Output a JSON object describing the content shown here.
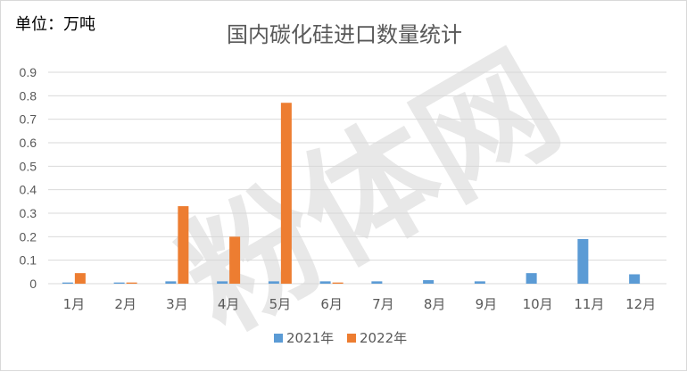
{
  "unit_label": "单位：万吨",
  "watermark": "粉体网",
  "chart_data": {
    "type": "bar",
    "title": "国内碳化硅进口数量统计",
    "xlabel": "",
    "ylabel": "",
    "categories": [
      "1月",
      "2月",
      "3月",
      "4月",
      "5月",
      "6月",
      "7月",
      "8月",
      "9月",
      "10月",
      "11月",
      "12月"
    ],
    "series": [
      {
        "name": "2021年",
        "color": "#5b9bd5",
        "values": [
          0.005,
          0.005,
          0.01,
          0.01,
          0.01,
          0.01,
          0.01,
          0.015,
          0.01,
          0.045,
          0.19,
          0.04
        ]
      },
      {
        "name": "2022年",
        "color": "#ed7d31",
        "values": [
          0.045,
          0.005,
          0.33,
          0.2,
          0.77,
          0.005,
          0,
          0,
          0,
          0,
          0,
          0
        ]
      }
    ],
    "ylim": [
      0,
      0.9
    ],
    "yticks": [
      "0",
      "0.1",
      "0.2",
      "0.3",
      "0.4",
      "0.5",
      "0.6",
      "0.7",
      "0.8",
      "0.9"
    ],
    "grid": true,
    "legend_position": "bottom"
  }
}
